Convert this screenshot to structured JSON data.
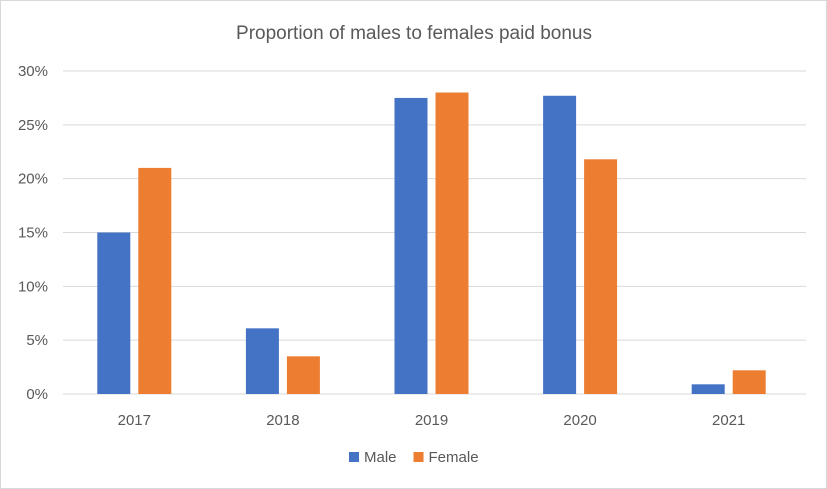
{
  "chart_data": {
    "type": "bar",
    "title": "Proportion of males to females paid bonus",
    "xlabel": "",
    "ylabel": "",
    "categories": [
      "2017",
      "2018",
      "2019",
      "2020",
      "2021"
    ],
    "series": [
      {
        "name": "Male",
        "color": "#4472C4",
        "values": [
          15.0,
          6.1,
          27.5,
          27.7,
          0.9
        ]
      },
      {
        "name": "Female",
        "color": "#ED7D31",
        "values": [
          21.0,
          3.5,
          28.0,
          21.8,
          2.2
        ]
      }
    ],
    "ylim": [
      0,
      30
    ],
    "yticks": [
      "0%",
      "5%",
      "10%",
      "15%",
      "20%",
      "25%",
      "30%"
    ],
    "ytick_values": [
      0,
      5,
      10,
      15,
      20,
      25,
      30
    ],
    "grid": true,
    "legend_position": "bottom"
  }
}
